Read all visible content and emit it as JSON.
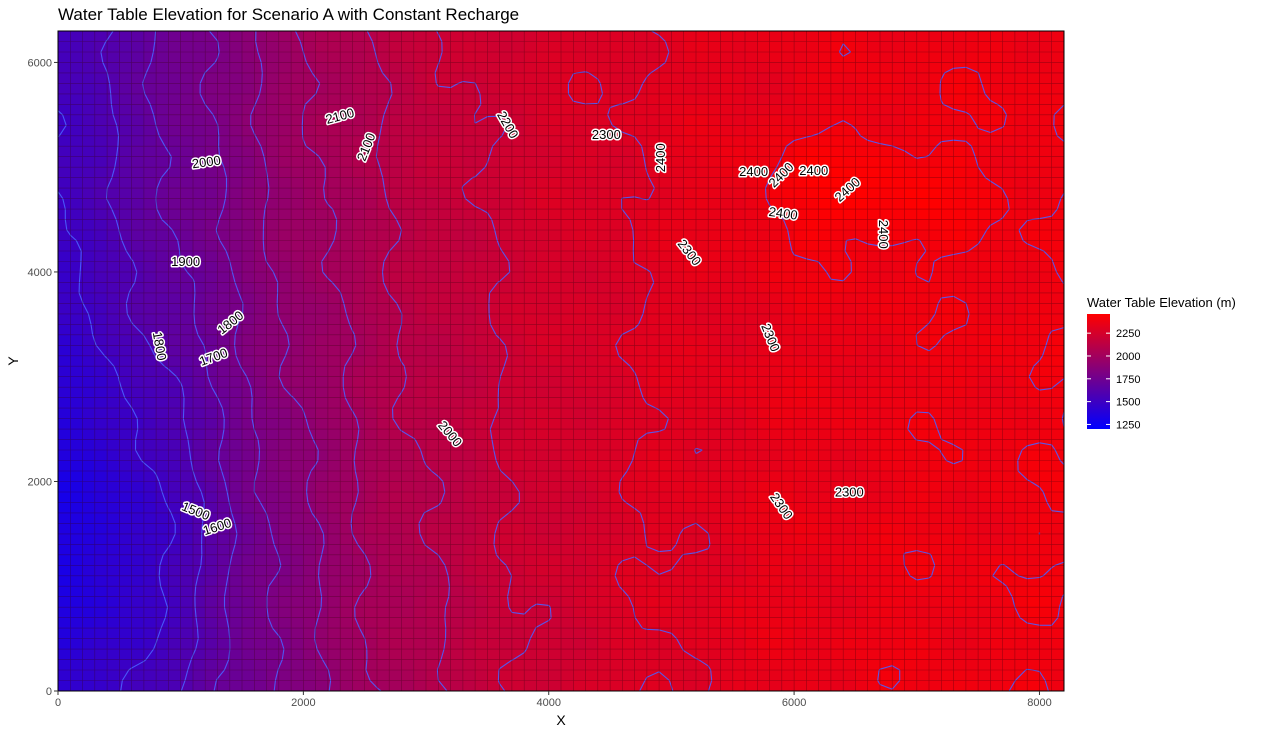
{
  "chart_data": {
    "type": "heatmap",
    "title": "Water Table Elevation for Scenario A with Constant Recharge",
    "xlabel": "X",
    "ylabel": "Y",
    "xlim": [
      0,
      8200
    ],
    "ylim": [
      0,
      6300
    ],
    "x_ticks": [
      0,
      2000,
      4000,
      6000,
      8000
    ],
    "y_ticks": [
      0,
      2000,
      4000,
      6000
    ],
    "grid_spacing": 100,
    "legend": {
      "title": "Water Table Elevation (m)",
      "position": "right",
      "min": 1200,
      "max": 2460,
      "ticks": [
        1250,
        1500,
        1750,
        2000,
        2250
      ],
      "color_low": "#0000ff",
      "color_high": "#ff0000"
    },
    "contour_color": "#4a60ff",
    "contour_levels": [
      1500,
      1600,
      1700,
      1800,
      1900,
      2000,
      2100,
      2200,
      2300,
      2400
    ],
    "contour_labels": [
      {
        "text": "2100",
        "x": 2300,
        "y": 5480,
        "angle": -15
      },
      {
        "text": "2200",
        "x": 3660,
        "y": 5400,
        "angle": 60
      },
      {
        "text": "2300",
        "x": 4470,
        "y": 5300,
        "angle": 0
      },
      {
        "text": "2100",
        "x": 2520,
        "y": 5190,
        "angle": -68
      },
      {
        "text": "2000",
        "x": 1210,
        "y": 5040,
        "angle": -8
      },
      {
        "text": "2400",
        "x": 4920,
        "y": 5090,
        "angle": -90
      },
      {
        "text": "2400",
        "x": 5670,
        "y": 4950,
        "angle": 0
      },
      {
        "text": "2400",
        "x": 5900,
        "y": 4920,
        "angle": -45
      },
      {
        "text": "2400",
        "x": 6160,
        "y": 4960,
        "angle": 0
      },
      {
        "text": "2400",
        "x": 6440,
        "y": 4780,
        "angle": -42
      },
      {
        "text": "2400",
        "x": 5910,
        "y": 4550,
        "angle": 8
      },
      {
        "text": "2400",
        "x": 6720,
        "y": 4360,
        "angle": 90
      },
      {
        "text": "1900",
        "x": 1040,
        "y": 4090,
        "angle": 0
      },
      {
        "text": "2300",
        "x": 5140,
        "y": 4180,
        "angle": 52
      },
      {
        "text": "1800",
        "x": 1410,
        "y": 3510,
        "angle": -38
      },
      {
        "text": "2300",
        "x": 5800,
        "y": 3370,
        "angle": 68
      },
      {
        "text": "1800",
        "x": 820,
        "y": 3290,
        "angle": 80
      },
      {
        "text": "1700",
        "x": 1270,
        "y": 3180,
        "angle": -20
      },
      {
        "text": "2000",
        "x": 3190,
        "y": 2450,
        "angle": 50
      },
      {
        "text": "2300",
        "x": 6450,
        "y": 1890,
        "angle": 0
      },
      {
        "text": "2300",
        "x": 5890,
        "y": 1760,
        "angle": 55
      },
      {
        "text": "1500",
        "x": 1120,
        "y": 1710,
        "angle": 22
      },
      {
        "text": "1600",
        "x": 1300,
        "y": 1560,
        "angle": -18
      }
    ]
  }
}
